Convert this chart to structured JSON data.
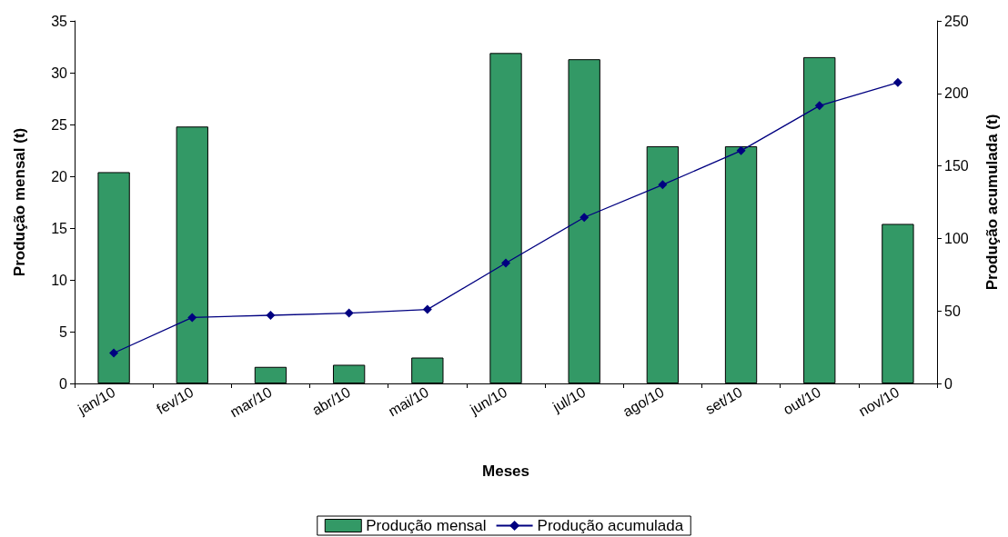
{
  "chart_data": {
    "type": "bar",
    "xlabel": "Meses",
    "ylabel": "Produção mensal (t)",
    "y2label": "Produção acumulada (t)",
    "categories": [
      "jan/10",
      "fev/10",
      "mar/10",
      "abr/10",
      "mai/10",
      "jun/10",
      "jul/10",
      "ago/10",
      "set/10",
      "out/10",
      "nov/10"
    ],
    "series": [
      {
        "name": "Produção mensal",
        "color": "#339966",
        "values": [
          20.4,
          24.8,
          1.6,
          1.8,
          2.5,
          31.9,
          31.3,
          22.9,
          22.9,
          31.5,
          15.4
        ]
      },
      {
        "name": "Produção acumulada",
        "type": "line",
        "axis": "y2",
        "color": "#000080",
        "marker": "diamond",
        "values": [
          21,
          45.5,
          47,
          48.5,
          51,
          83,
          114.5,
          137,
          160.5,
          191.5,
          207.5
        ]
      }
    ],
    "ylim": [
      0,
      35
    ],
    "yticks": [
      0,
      5,
      10,
      15,
      20,
      25,
      30,
      35
    ],
    "y2lim": [
      0,
      250
    ],
    "y2ticks": [
      0,
      50,
      100,
      150,
      200,
      250
    ],
    "grid": false,
    "legend": "bottom"
  }
}
